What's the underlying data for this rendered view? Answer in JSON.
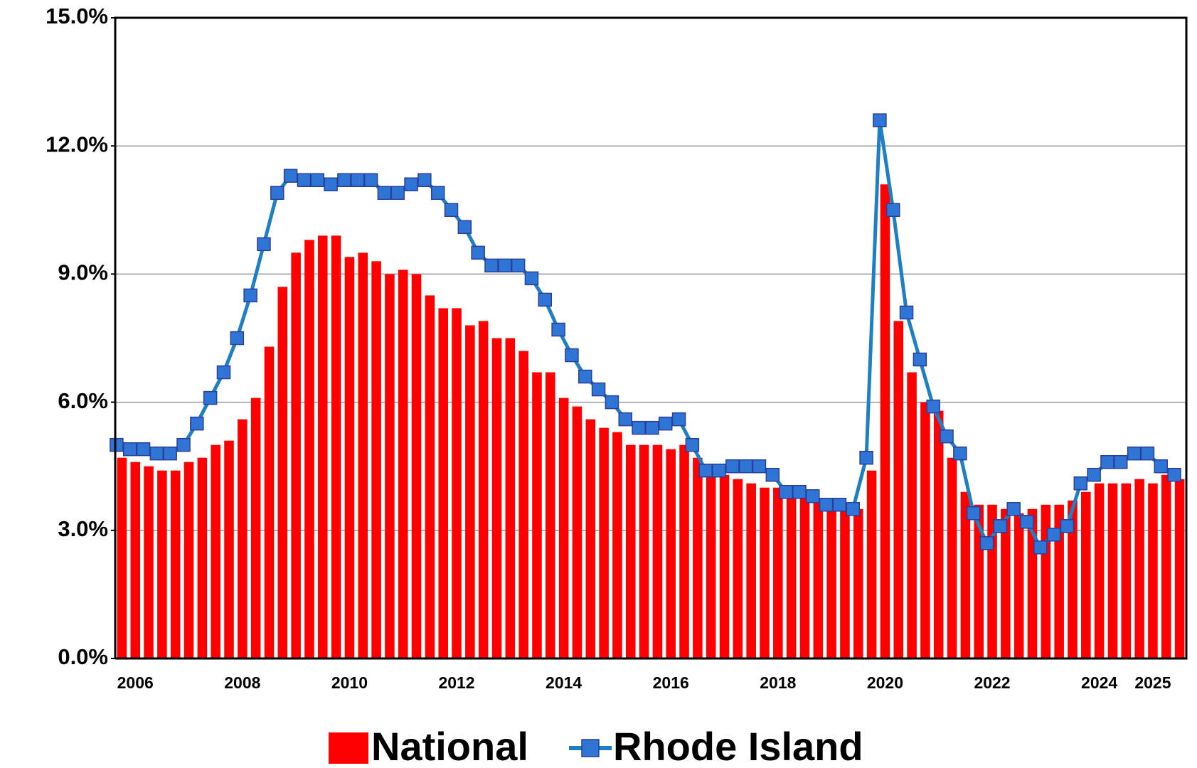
{
  "chart_data": {
    "type": "bar_line",
    "categories": [
      null,
      "2006",
      null,
      null,
      null,
      null,
      null,
      null,
      null,
      "2008",
      null,
      null,
      null,
      null,
      null,
      null,
      null,
      "2010",
      null,
      null,
      null,
      null,
      null,
      null,
      null,
      "2012",
      null,
      null,
      null,
      null,
      null,
      null,
      null,
      "2014",
      null,
      null,
      null,
      null,
      null,
      null,
      null,
      "2016",
      null,
      null,
      null,
      null,
      null,
      null,
      null,
      "2018",
      null,
      null,
      null,
      null,
      null,
      null,
      null,
      "2020",
      null,
      null,
      null,
      null,
      null,
      null,
      null,
      "2022",
      null,
      null,
      null,
      null,
      null,
      null,
      null,
      "2024",
      null,
      null,
      null,
      "2025",
      null,
      null
    ],
    "series": [
      {
        "name": "National",
        "type": "bar",
        "color": "#ff0000",
        "values": [
          4.7,
          4.6,
          4.5,
          4.4,
          4.4,
          4.6,
          4.7,
          5.0,
          5.1,
          5.6,
          6.1,
          7.3,
          8.7,
          9.5,
          9.8,
          9.9,
          9.9,
          9.4,
          9.5,
          9.3,
          9.0,
          9.1,
          9.0,
          8.5,
          8.2,
          8.2,
          7.8,
          7.9,
          7.5,
          7.5,
          7.2,
          6.7,
          6.7,
          6.1,
          5.9,
          5.6,
          5.4,
          5.3,
          5.0,
          5.0,
          5.0,
          4.9,
          5.0,
          4.7,
          4.4,
          4.3,
          4.2,
          4.1,
          4.0,
          4.0,
          3.8,
          3.8,
          3.7,
          3.6,
          3.6,
          3.5,
          4.4,
          11.1,
          7.9,
          6.7,
          6.0,
          5.8,
          4.7,
          3.9,
          3.6,
          3.6,
          3.5,
          3.4,
          3.5,
          3.6,
          3.6,
          3.7,
          3.9,
          4.1,
          4.1,
          4.1,
          4.2,
          4.1,
          4.3,
          4.2
        ]
      },
      {
        "name": "Rhode Island",
        "type": "line",
        "color": "#1f7fc4",
        "marker_color": "#2e75d6",
        "values": [
          5.0,
          4.9,
          4.9,
          4.8,
          4.8,
          5.0,
          5.5,
          6.1,
          6.7,
          7.5,
          8.5,
          9.7,
          10.9,
          11.3,
          11.2,
          11.2,
          11.1,
          11.2,
          11.2,
          11.2,
          10.9,
          10.9,
          11.1,
          11.2,
          10.9,
          10.5,
          10.1,
          9.5,
          9.2,
          9.2,
          9.2,
          8.9,
          8.4,
          7.7,
          7.1,
          6.6,
          6.3,
          6.0,
          5.6,
          5.4,
          5.4,
          5.5,
          5.6,
          5.0,
          4.4,
          4.4,
          4.5,
          4.5,
          4.5,
          4.3,
          3.9,
          3.9,
          3.8,
          3.6,
          3.6,
          3.5,
          4.7,
          12.6,
          10.5,
          8.1,
          7.0,
          5.9,
          5.2,
          4.8,
          3.4,
          2.7,
          3.1,
          3.5,
          3.2,
          2.6,
          2.9,
          3.1,
          4.1,
          4.3,
          4.6,
          4.6,
          4.8,
          4.8,
          4.5,
          4.3
        ]
      }
    ],
    "ylim": [
      0,
      15
    ],
    "yticks": [
      {
        "value": 0,
        "label": "0.0%"
      },
      {
        "value": 3,
        "label": "3.0%"
      },
      {
        "value": 6,
        "label": "6.0%"
      },
      {
        "value": 9,
        "label": "9.0%"
      },
      {
        "value": 12,
        "label": "12.0%"
      },
      {
        "value": 15,
        "label": "15.0%"
      }
    ],
    "grid": true,
    "legend": "bottom"
  }
}
